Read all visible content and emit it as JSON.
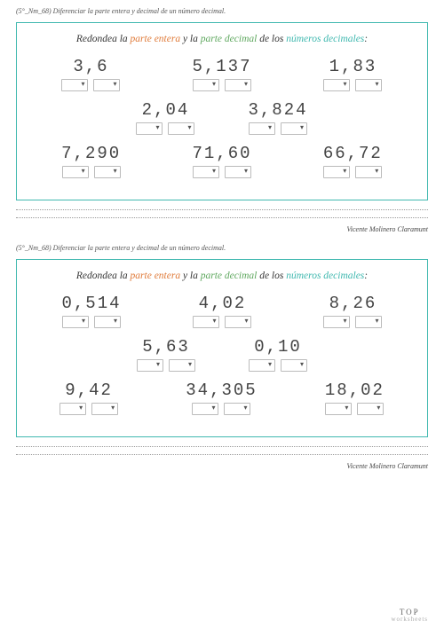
{
  "header": "(5°_Nm_68) Diferenciar la parte entera y decimal de un número decimal.",
  "instruction": {
    "t1": "Redondea la ",
    "t2": "parte entera",
    "t3": " y la ",
    "t4": "parte decimal",
    "t5": " de los ",
    "t6": "números decimales",
    "t7": ":"
  },
  "author": "Vicente Molinero Claramunt",
  "brand": {
    "top": "TOP",
    "bot": "worksheets"
  },
  "colors": {
    "border": "#3fb8af",
    "orange": "#e07b3a",
    "green": "#5fa85f",
    "teal": "#3fb8af"
  },
  "sheet1": {
    "row1": [
      "3,6",
      "5,137",
      "1,83"
    ],
    "row2": [
      "2,04",
      "3,824"
    ],
    "row3": [
      "7,290",
      "71,60",
      "66,72"
    ]
  },
  "sheet2": {
    "row1": [
      "0,514",
      "4,02",
      "8,26"
    ],
    "row2": [
      "5,63",
      "0,10"
    ],
    "row3": [
      "9,42",
      "34,305",
      "18,02"
    ]
  }
}
